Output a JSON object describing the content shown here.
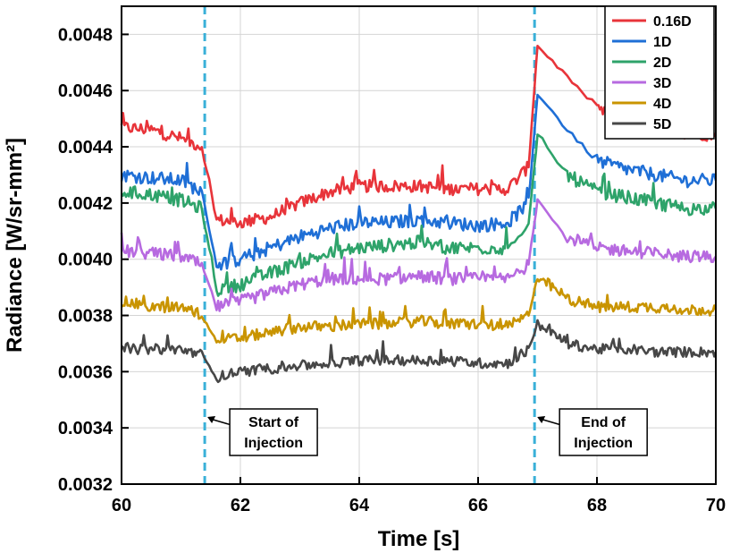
{
  "chart_data": {
    "type": "line",
    "xlabel": "Time [s]",
    "ylabel": "Radiance [W/sr-mm²]",
    "xlim": [
      60,
      70
    ],
    "ylim": [
      0.0032,
      0.0049
    ],
    "x_ticks": [
      "60",
      "62",
      "64",
      "66",
      "68",
      "70"
    ],
    "y_ticks": [
      "0.0032",
      "0.0034",
      "0.0036",
      "0.0038",
      "0.0040",
      "0.0042",
      "0.0044",
      "0.0046",
      "0.0048"
    ],
    "grid": true,
    "legend_position": "top-right",
    "x": [
      60.0,
      60.5,
      61.0,
      61.35,
      61.6,
      62.0,
      62.5,
      63.0,
      63.5,
      64.0,
      64.5,
      65.0,
      65.5,
      66.0,
      66.5,
      66.85,
      67.0,
      67.5,
      68.0,
      68.5,
      69.0,
      69.5,
      70.0
    ],
    "series": [
      {
        "name": "0.16D",
        "color": "#e8343a",
        "values": [
          0.00447,
          0.00446,
          0.00443,
          0.0044,
          0.00414,
          0.00413,
          0.00415,
          0.0042,
          0.00424,
          0.00426,
          0.00426,
          0.00426,
          0.00425,
          0.00425,
          0.00425,
          0.00433,
          0.00476,
          0.00465,
          0.00453,
          0.00449,
          0.00446,
          0.00445,
          0.00444
        ]
      },
      {
        "name": "1D",
        "color": "#1f6fd6",
        "values": [
          0.0043,
          0.00429,
          0.00428,
          0.00424,
          0.00398,
          0.004,
          0.00404,
          0.00408,
          0.00411,
          0.00413,
          0.00413,
          0.00414,
          0.00413,
          0.00412,
          0.00413,
          0.0042,
          0.00459,
          0.00446,
          0.00435,
          0.00432,
          0.0043,
          0.00428,
          0.00428
        ]
      },
      {
        "name": "2D",
        "color": "#2ea36a",
        "values": [
          0.00424,
          0.00423,
          0.00421,
          0.00418,
          0.00389,
          0.00391,
          0.00395,
          0.00399,
          0.00402,
          0.00404,
          0.00405,
          0.00406,
          0.00404,
          0.00404,
          0.00404,
          0.00412,
          0.00444,
          0.0043,
          0.00424,
          0.00422,
          0.0042,
          0.00418,
          0.00418
        ]
      },
      {
        "name": "3D",
        "color": "#b76ae0",
        "values": [
          0.00403,
          0.00402,
          0.00401,
          0.00398,
          0.00383,
          0.00385,
          0.00388,
          0.00391,
          0.00393,
          0.00393,
          0.00393,
          0.00394,
          0.00393,
          0.00393,
          0.00393,
          0.00398,
          0.00421,
          0.00408,
          0.00404,
          0.00403,
          0.00402,
          0.00401,
          0.00401
        ]
      },
      {
        "name": "4D",
        "color": "#c99400",
        "values": [
          0.00385,
          0.00383,
          0.00383,
          0.0038,
          0.00371,
          0.00372,
          0.00374,
          0.00376,
          0.00376,
          0.00377,
          0.00377,
          0.00378,
          0.00377,
          0.00377,
          0.00376,
          0.0038,
          0.00394,
          0.00386,
          0.00383,
          0.00383,
          0.00383,
          0.00382,
          0.00382
        ]
      },
      {
        "name": "5D",
        "color": "#474747",
        "values": [
          0.00368,
          0.00368,
          0.00368,
          0.00366,
          0.00358,
          0.0036,
          0.00361,
          0.00362,
          0.00363,
          0.00364,
          0.00364,
          0.00364,
          0.00364,
          0.00363,
          0.00363,
          0.00368,
          0.00377,
          0.0037,
          0.00368,
          0.00368,
          0.00367,
          0.00367,
          0.00367
        ]
      }
    ],
    "markers": [
      {
        "x": 61.4,
        "label_line1": "Start of",
        "label_line2": "Injection",
        "color": "#3ab0d8"
      },
      {
        "x": 66.95,
        "label_line1": "End of",
        "label_line2": "Injection",
        "color": "#3ab0d8"
      }
    ]
  }
}
